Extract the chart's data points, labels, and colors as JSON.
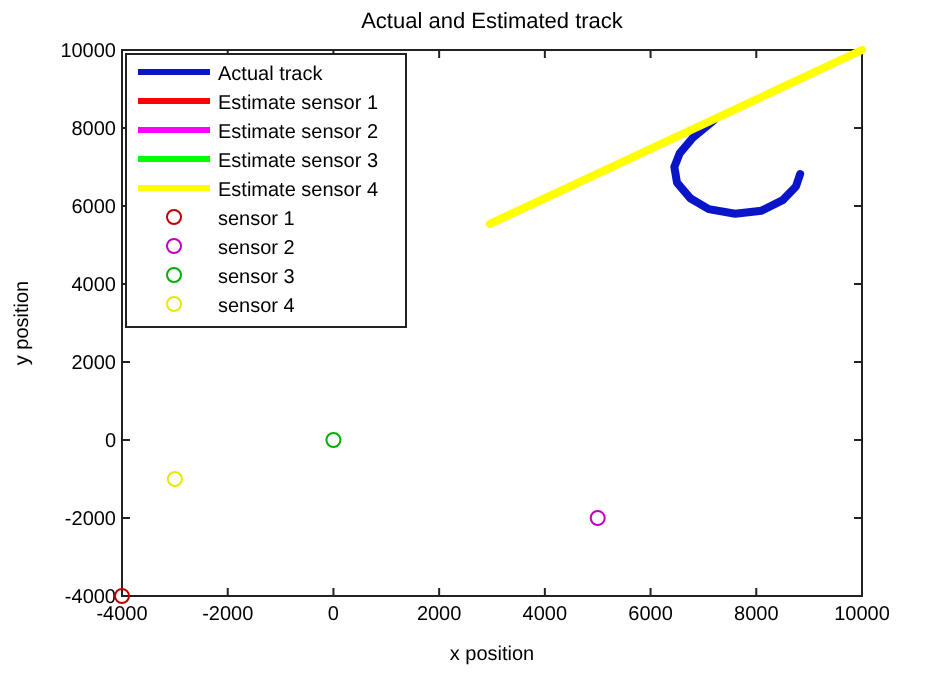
{
  "chart_data": {
    "type": "line",
    "title": "Actual and Estimated track",
    "xlabel": "x position",
    "ylabel": "y position",
    "xlim": [
      -4000,
      10000
    ],
    "ylim": [
      -4000,
      10000
    ],
    "xticks": [
      -4000,
      -2000,
      0,
      2000,
      4000,
      6000,
      8000,
      10000
    ],
    "yticks": [
      -4000,
      -2000,
      0,
      2000,
      4000,
      6000,
      8000,
      10000
    ],
    "grid": false,
    "legend": "top left",
    "line_style": "solid",
    "series": [
      {
        "name": "Actual track",
        "color": "#0a14c8",
        "x": [
          7200,
          6800,
          6550,
          6450,
          6500,
          6750,
          7100,
          7600,
          8100,
          8500,
          8750,
          8830
        ],
        "values": [
          8200,
          7750,
          7350,
          7000,
          6600,
          6200,
          5920,
          5800,
          5880,
          6150,
          6500,
          6820
        ]
      },
      {
        "name": "Estimate sensor 1",
        "color": "#ff0000"
      },
      {
        "name": "Estimate sensor 2",
        "color": "#ff00ff"
      },
      {
        "name": "Estimate sensor 3",
        "color": "#00ff00"
      },
      {
        "name": "Estimate sensor 4",
        "color": "#ffff00",
        "x": [
          2960,
          10000
        ],
        "values": [
          5540,
          10000
        ]
      },
      {
        "name": "sensor 1",
        "color": "#c00000",
        "type": "scatter",
        "marker": "circle",
        "x": [
          -4000
        ],
        "values": [
          -4000
        ]
      },
      {
        "name": "sensor 2",
        "color": "#c000c0",
        "type": "scatter",
        "marker": "circle",
        "x": [
          5000
        ],
        "values": [
          -2000
        ]
      },
      {
        "name": "sensor 3",
        "color": "#00b000",
        "type": "scatter",
        "marker": "circle",
        "x": [
          0
        ],
        "values": [
          0
        ]
      },
      {
        "name": "sensor 4",
        "color": "#e8e800",
        "type": "scatter",
        "marker": "circle",
        "x": [
          -3000
        ],
        "values": [
          -1000
        ]
      }
    ]
  }
}
